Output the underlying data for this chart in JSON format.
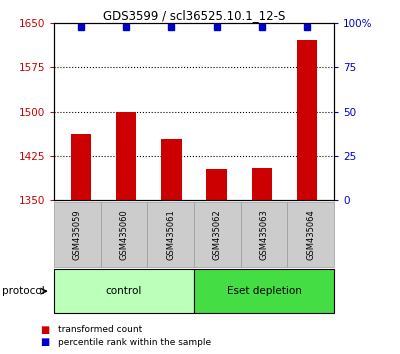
{
  "title": "GDS3599 / scl36525.10.1_12-S",
  "samples": [
    "GSM435059",
    "GSM435060",
    "GSM435061",
    "GSM435062",
    "GSM435063",
    "GSM435064"
  ],
  "red_values": [
    1462,
    1500,
    1453,
    1403,
    1405,
    1622
  ],
  "blue_values": [
    100,
    100,
    100,
    100,
    100,
    100
  ],
  "ylim_left": [
    1350,
    1650
  ],
  "ylim_right": [
    0,
    100
  ],
  "yticks_left": [
    1350,
    1425,
    1500,
    1575,
    1650
  ],
  "yticks_right": [
    0,
    25,
    50,
    75,
    100
  ],
  "ytick_labels_right": [
    "0",
    "25",
    "50",
    "75",
    "100%"
  ],
  "hline_values": [
    1425,
    1500,
    1575
  ],
  "bar_color": "#cc0000",
  "dot_color": "#0000cc",
  "protocol_groups": [
    {
      "label": "control",
      "n_samples": 3,
      "color": "#bbffbb"
    },
    {
      "label": "Eset depletion",
      "n_samples": 3,
      "color": "#44dd44"
    }
  ],
  "protocol_label": "protocol",
  "legend_red": "transformed count",
  "legend_blue": "percentile rank within the sample",
  "background_color": "#ffffff",
  "gray_box_color": "#cccccc",
  "gray_box_border": "#999999"
}
